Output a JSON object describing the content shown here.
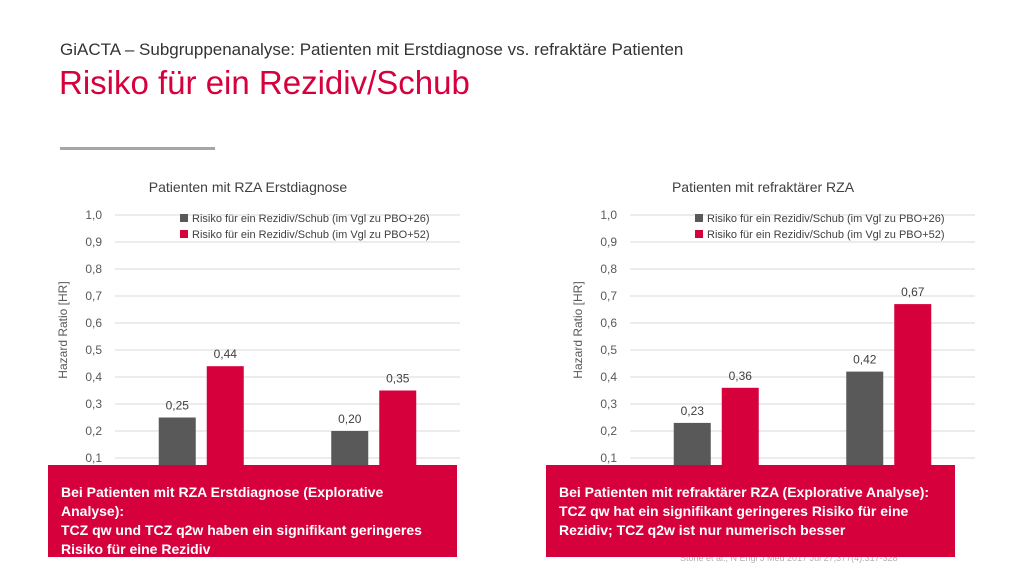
{
  "header": {
    "subtitle": "GiACTA – Subgruppenanalyse: Patienten mit Erstdiagnose vs. refraktäre Patienten",
    "title": "Risiko für ein Rezidiv/Schub"
  },
  "colors": {
    "accent": "#d6003d",
    "series_dark": "#595959",
    "grid": "#d9d9d9",
    "divider": "#a6a6a6"
  },
  "chart_data": [
    {
      "type": "bar",
      "title": "Patienten mit RZA Erstdiagnose",
      "ylabel": "Hazard Ratio [HR]",
      "xlabel": "",
      "ylim": [
        0,
        1.0
      ],
      "yticks": [
        "0,1",
        "0,2",
        "0,3",
        "0,4",
        "0,5",
        "0,6",
        "0,7",
        "0,8",
        "0,9",
        "1,0"
      ],
      "grid": true,
      "legend_position": "top-right",
      "categories": [
        "",
        ""
      ],
      "series": [
        {
          "name": "Risiko für ein Rezidiv/Schub (im Vgl zu PBO+26)",
          "color": "#595959",
          "values": [
            0.25,
            0.2
          ],
          "labels": [
            "0,25",
            "0,20"
          ]
        },
        {
          "name": "Risiko für ein Rezidiv/Schub (im Vgl zu PBO+52)",
          "color": "#d6003d",
          "values": [
            0.44,
            0.35
          ],
          "labels": [
            "0,44",
            "0,35"
          ]
        }
      ]
    },
    {
      "type": "bar",
      "title": "Patienten mit refraktärer RZA",
      "ylabel": "Hazard Ratio [HR]",
      "xlabel": "",
      "ylim": [
        0,
        1.0
      ],
      "yticks": [
        "0,1",
        "0,2",
        "0,3",
        "0,4",
        "0,5",
        "0,6",
        "0,7",
        "0,8",
        "0,9",
        "1,0"
      ],
      "grid": true,
      "legend_position": "top-right",
      "categories": [
        "",
        ""
      ],
      "series": [
        {
          "name": "Risiko für ein Rezidiv/Schub (im Vgl zu PBO+26)",
          "color": "#595959",
          "values": [
            0.23,
            0.42
          ],
          "labels": [
            "0,23",
            "0,42"
          ]
        },
        {
          "name": "Risiko für ein Rezidiv/Schub (im Vgl zu PBO+52)",
          "color": "#d6003d",
          "values": [
            0.36,
            0.67
          ],
          "labels": [
            "0,36",
            "0,67"
          ]
        }
      ]
    }
  ],
  "callouts": {
    "left": [
      "Bei Patienten mit RZA Erstdiagnose (Explorative Analyse):",
      "TCZ qw und TCZ q2w haben ein signifikant geringeres",
      "Risiko für eine Rezidiv"
    ],
    "right": [
      "Bei Patienten mit refraktärer RZA (Explorative Analyse):",
      "TCZ qw hat ein signifikant geringeres Risiko für eine",
      "Rezidiv; TCZ q2w ist nur numerisch besser"
    ]
  },
  "citation": "Stone et al., N Engl J Med 2017 Jul 27;377(4):317-328"
}
